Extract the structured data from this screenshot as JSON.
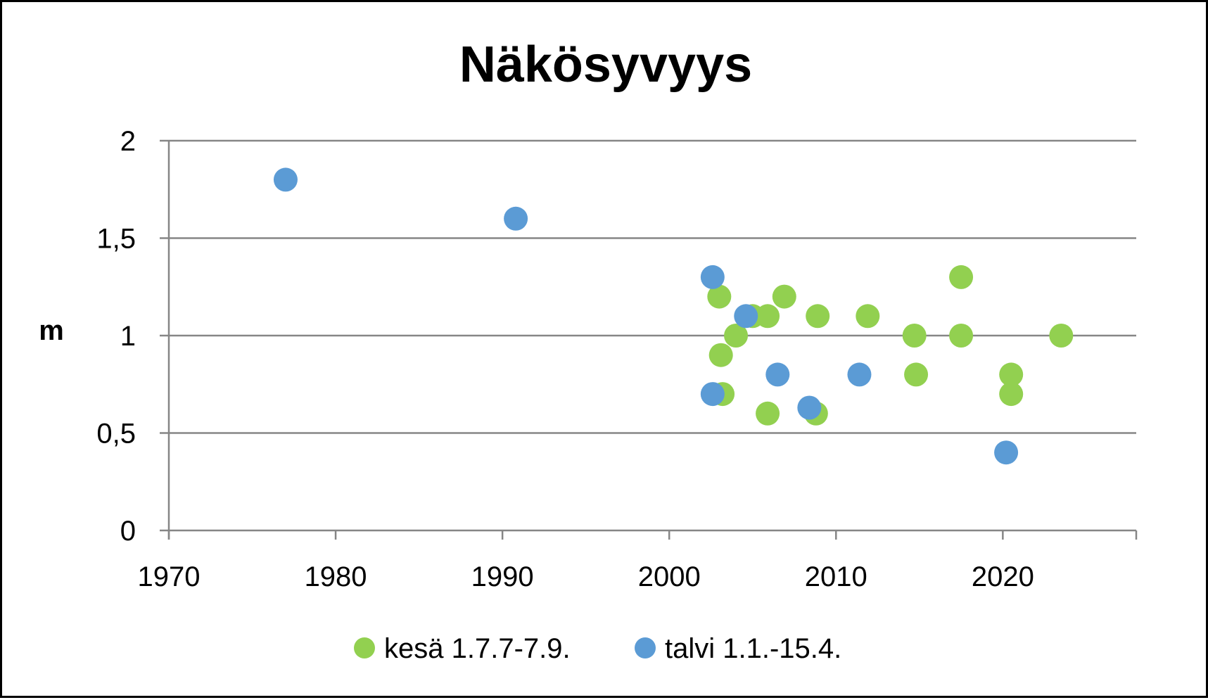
{
  "chart_data": {
    "type": "scatter",
    "title": "Näkösyvyys",
    "xlabel": "",
    "ylabel": "m",
    "xlim": [
      1970,
      2028
    ],
    "ylim": [
      0,
      2
    ],
    "x_ticks": [
      "1970",
      "1980",
      "1990",
      "2000",
      "2010",
      "2020"
    ],
    "y_ticks": [
      "0",
      "0,5",
      "1",
      "1,5",
      "2"
    ],
    "grid": true,
    "legend_position": "bottom",
    "series": [
      {
        "name": "kesä 1.7.7-7.9.",
        "color": "#92d050",
        "points": [
          {
            "x": 2003.0,
            "y": 1.2
          },
          {
            "x": 2003.1,
            "y": 0.9
          },
          {
            "x": 2003.2,
            "y": 0.7
          },
          {
            "x": 2004.0,
            "y": 1.0
          },
          {
            "x": 2005.0,
            "y": 1.1
          },
          {
            "x": 2005.9,
            "y": 1.1
          },
          {
            "x": 2005.9,
            "y": 0.6
          },
          {
            "x": 2006.9,
            "y": 1.2
          },
          {
            "x": 2008.8,
            "y": 0.6
          },
          {
            "x": 2008.9,
            "y": 1.1
          },
          {
            "x": 2011.9,
            "y": 1.1
          },
          {
            "x": 2014.7,
            "y": 1.0
          },
          {
            "x": 2014.8,
            "y": 0.8
          },
          {
            "x": 2017.5,
            "y": 1.3
          },
          {
            "x": 2017.5,
            "y": 1.0
          },
          {
            "x": 2020.5,
            "y": 0.8
          },
          {
            "x": 2020.5,
            "y": 0.7
          },
          {
            "x": 2023.5,
            "y": 1.0
          }
        ]
      },
      {
        "name": "talvi 1.1.-15.4.",
        "color": "#5b9bd5",
        "points": [
          {
            "x": 1977.0,
            "y": 1.8
          },
          {
            "x": 1990.8,
            "y": 1.6
          },
          {
            "x": 2002.6,
            "y": 1.3
          },
          {
            "x": 2002.6,
            "y": 0.7
          },
          {
            "x": 2004.6,
            "y": 1.1
          },
          {
            "x": 2006.5,
            "y": 0.8
          },
          {
            "x": 2008.4,
            "y": 0.63
          },
          {
            "x": 2011.4,
            "y": 0.8
          },
          {
            "x": 2020.2,
            "y": 0.4
          }
        ]
      }
    ]
  }
}
